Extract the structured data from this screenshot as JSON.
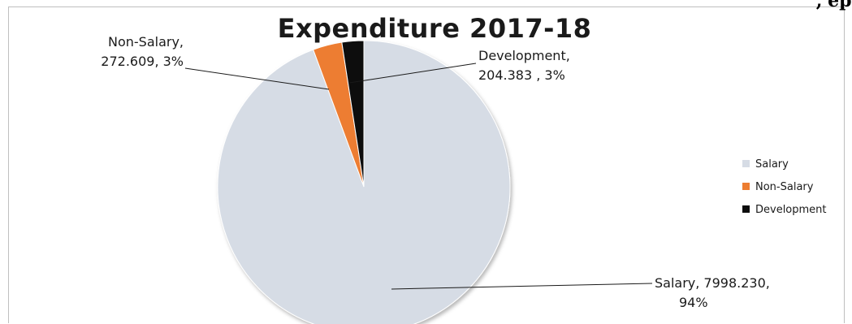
{
  "top_right_fragment": "','ep",
  "chart_data": {
    "type": "pie",
    "title": "Expenditure 2017-18",
    "slices": [
      {
        "name": "Salary",
        "value": 7998.23,
        "percent": 94,
        "color": "#d6dce5",
        "label_lines": [
          "Salary, 7998.230,",
          "94%"
        ]
      },
      {
        "name": "Non-Salary",
        "value": 272.609,
        "percent": 3,
        "color": "#ed7d31",
        "label_lines": [
          "Non-Salary,",
          "272.609, 3%"
        ]
      },
      {
        "name": "Development",
        "value": 204.383,
        "percent": 3,
        "color": "#0d0d0d",
        "label_lines": [
          "Development,",
          "204.383 , 3%"
        ]
      }
    ],
    "legend": {
      "position": "right",
      "items": [
        "Salary",
        "Non-Salary",
        "Development"
      ]
    }
  }
}
